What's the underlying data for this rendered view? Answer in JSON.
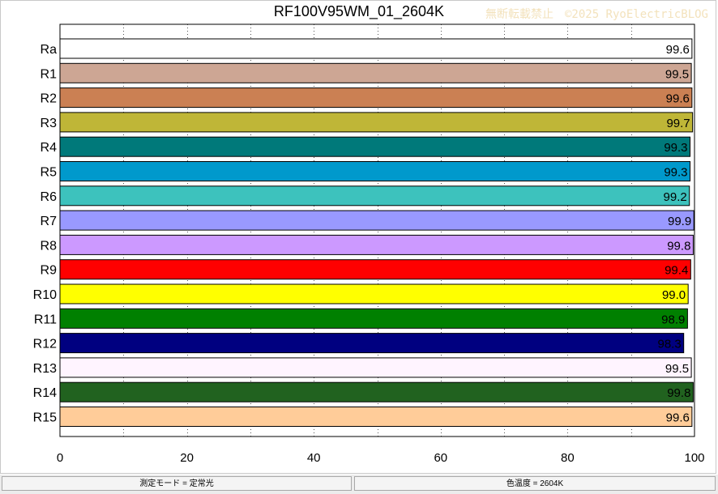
{
  "watermark": "無断転載禁止　©2025 RyoElectricBLOG",
  "status": {
    "mode": "測定モード = 定常光",
    "cct": "色温度 = 2604K"
  },
  "chart_data": {
    "type": "bar",
    "orientation": "horizontal",
    "title": "RF100V95WM_01_2604K",
    "categories": [
      "Ra",
      "R1",
      "R2",
      "R3",
      "R4",
      "R5",
      "R6",
      "R7",
      "R8",
      "R9",
      "R10",
      "R11",
      "R12",
      "R13",
      "R14",
      "R15"
    ],
    "values": [
      99.6,
      99.5,
      99.6,
      99.7,
      99.3,
      99.3,
      99.2,
      99.9,
      99.8,
      99.4,
      99.0,
      98.9,
      98.3,
      99.5,
      99.8,
      99.6
    ],
    "value_labels": [
      "99.6",
      "99.5",
      "99.6",
      "99.7",
      "99.3",
      "99.3",
      "99.2",
      "99.9",
      "99.8",
      "99.4",
      "99.0",
      "98.9",
      "98.3",
      "99.5",
      "99.8",
      "99.6"
    ],
    "colors": [
      "#ffffff",
      "#cda694",
      "#cb8053",
      "#bfb637",
      "#00797a",
      "#0099cc",
      "#3dc2bd",
      "#9999ff",
      "#cc99ff",
      "#ff0000",
      "#ffff00",
      "#008000",
      "#000080",
      "#fff4ff",
      "#21621f",
      "#ffcc99"
    ],
    "xlim": [
      0,
      100
    ],
    "xticks": [
      "0",
      "20",
      "40",
      "60",
      "80",
      "100"
    ],
    "xlabel": "",
    "ylabel": "",
    "grid": true,
    "legend": "none"
  }
}
